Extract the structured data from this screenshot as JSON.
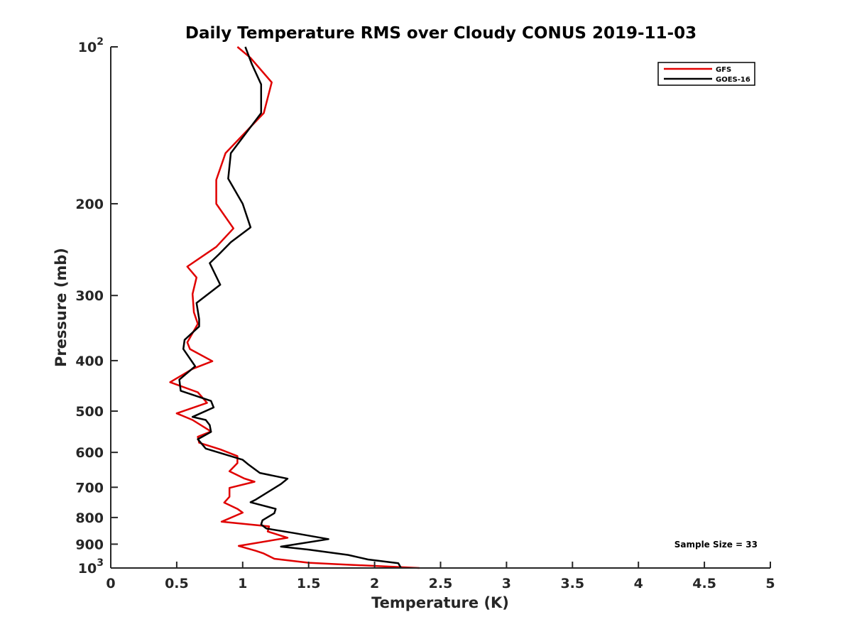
{
  "chart_data": {
    "type": "line",
    "title": "Daily Temperature RMS over Cloudy CONUS 2019-11-03",
    "xlabel": "Temperature (K)",
    "ylabel": "Pressure (mb)",
    "xlim": [
      0,
      5
    ],
    "ylim": [
      100,
      1000
    ],
    "y_scale": "log",
    "y_reversed": true,
    "grid": false,
    "legend_position": "top-right",
    "x_ticks": [
      "0",
      "0.5",
      "1",
      "1.5",
      "2",
      "2.5",
      "3",
      "3.5",
      "4",
      "4.5",
      "5"
    ],
    "y_ticks": [
      {
        "value": 100,
        "base": "10",
        "exp": "2"
      },
      {
        "value": 200,
        "label": "200"
      },
      {
        "value": 300,
        "label": "300"
      },
      {
        "value": 400,
        "label": "400"
      },
      {
        "value": 500,
        "label": "500"
      },
      {
        "value": 600,
        "label": "600"
      },
      {
        "value": 700,
        "label": "700"
      },
      {
        "value": 800,
        "label": "800"
      },
      {
        "value": 900,
        "label": "900"
      },
      {
        "value": 1000,
        "base": "10",
        "exp": "3"
      }
    ],
    "annotation": "Sample Size = 33",
    "series": [
      {
        "name": "GFS",
        "color": "#e00000",
        "points": [
          [
            0.96,
            100
          ],
          [
            1.06,
            105
          ],
          [
            1.22,
            117
          ],
          [
            1.16,
            134
          ],
          [
            0.87,
            160
          ],
          [
            0.8,
            180
          ],
          [
            0.8,
            200
          ],
          [
            0.93,
            223
          ],
          [
            0.8,
            242
          ],
          [
            0.58,
            264
          ],
          [
            0.65,
            277
          ],
          [
            0.62,
            298
          ],
          [
            0.63,
            323
          ],
          [
            0.66,
            340
          ],
          [
            0.58,
            369
          ],
          [
            0.6,
            380
          ],
          [
            0.77,
            401
          ],
          [
            0.62,
            415
          ],
          [
            0.45,
            440
          ],
          [
            0.66,
            460
          ],
          [
            0.73,
            482
          ],
          [
            0.5,
            505
          ],
          [
            0.62,
            520
          ],
          [
            0.76,
            547
          ],
          [
            0.66,
            560
          ],
          [
            0.67,
            575
          ],
          [
            0.83,
            592
          ],
          [
            0.96,
            610
          ],
          [
            0.96,
            629
          ],
          [
            0.9,
            652
          ],
          [
            1.01,
            673
          ],
          [
            1.09,
            683
          ],
          [
            0.9,
            702
          ],
          [
            0.9,
            730
          ],
          [
            0.86,
            749
          ],
          [
            0.96,
            770
          ],
          [
            1.0,
            783
          ],
          [
            0.84,
            815
          ],
          [
            1.2,
            832
          ],
          [
            1.19,
            851
          ],
          [
            1.34,
            875
          ],
          [
            0.97,
            907
          ],
          [
            1.1,
            927
          ],
          [
            1.16,
            938
          ],
          [
            1.24,
            960
          ],
          [
            1.5,
            977
          ],
          [
            1.7,
            983
          ],
          [
            2.34,
            1000
          ]
        ]
      },
      {
        "name": "GOES-16",
        "color": "#000000",
        "points": [
          [
            1.02,
            100
          ],
          [
            1.07,
            108
          ],
          [
            1.14,
            118
          ],
          [
            1.14,
            134
          ],
          [
            0.91,
            160
          ],
          [
            0.89,
            179
          ],
          [
            1.0,
            200
          ],
          [
            1.06,
            222
          ],
          [
            0.91,
            237
          ],
          [
            0.82,
            250
          ],
          [
            0.75,
            260
          ],
          [
            0.83,
            286
          ],
          [
            0.65,
            310
          ],
          [
            0.67,
            333
          ],
          [
            0.67,
            344
          ],
          [
            0.56,
            365
          ],
          [
            0.55,
            380
          ],
          [
            0.64,
            410
          ],
          [
            0.52,
            435
          ],
          [
            0.53,
            457
          ],
          [
            0.76,
            478
          ],
          [
            0.78,
            492
          ],
          [
            0.62,
            513
          ],
          [
            0.72,
            520
          ],
          [
            0.75,
            532
          ],
          [
            0.76,
            548
          ],
          [
            0.66,
            566
          ],
          [
            0.72,
            590
          ],
          [
            1.0,
            620
          ],
          [
            1.04,
            632
          ],
          [
            1.13,
            657
          ],
          [
            1.34,
            674
          ],
          [
            1.29,
            690
          ],
          [
            1.1,
            739
          ],
          [
            1.06,
            748
          ],
          [
            1.25,
            770
          ],
          [
            1.24,
            785
          ],
          [
            1.15,
            810
          ],
          [
            1.14,
            825
          ],
          [
            1.18,
            840
          ],
          [
            1.39,
            857
          ],
          [
            1.65,
            880
          ],
          [
            1.29,
            910
          ],
          [
            1.5,
            922
          ],
          [
            1.8,
            944
          ],
          [
            1.95,
            963
          ],
          [
            2.18,
            979
          ],
          [
            2.2,
            1000
          ]
        ]
      }
    ]
  }
}
